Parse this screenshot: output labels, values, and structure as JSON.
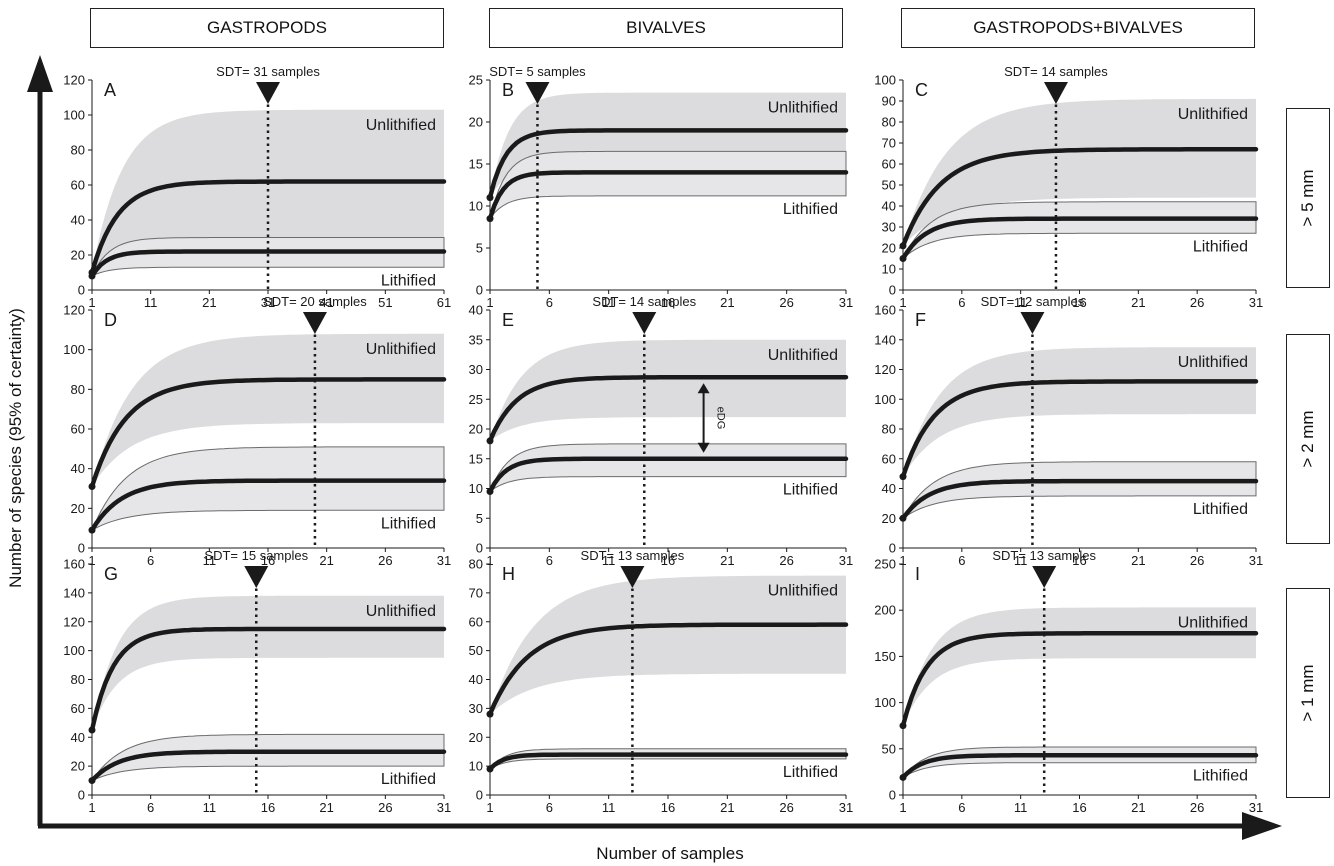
{
  "column_headers": [
    "GASTROPODS",
    "BIVALVES",
    "GASTROPODS+BIVALVES"
  ],
  "row_labels": [
    "> 5 mm",
    "> 2 mm",
    "> 1 mm"
  ],
  "y_axis_label": "Number of species (95% of certainty)",
  "x_axis_label": "Number of samples",
  "colors": {
    "curve": "#1a1a1a",
    "unlithified_band": "#dcdcde",
    "lithified_band": "#e6e6e8",
    "band_edge": "#6b6b6b"
  },
  "chart_data": [
    {
      "panel": "A",
      "type": "line",
      "xticks": [
        1,
        11,
        21,
        31,
        41,
        51,
        61
      ],
      "yticks": [
        0,
        20,
        40,
        60,
        80,
        100,
        120
      ],
      "xlim": [
        1,
        61
      ],
      "ylim": [
        0,
        120
      ],
      "sdt": 31,
      "sdt_label": "SDT= 31 samples",
      "series": [
        {
          "name": "Unlithified",
          "start": 10,
          "plateau": 62,
          "rate": 0.23,
          "band_low": 30,
          "band_high": 103
        },
        {
          "name": "Lithified",
          "start": 8,
          "plateau": 22,
          "rate": 0.4,
          "band_low": 13,
          "band_high": 30
        }
      ]
    },
    {
      "panel": "B",
      "type": "line",
      "xticks": [
        1,
        6,
        11,
        16,
        21,
        26,
        31
      ],
      "yticks": [
        0,
        5,
        10,
        15,
        20,
        25
      ],
      "xlim": [
        1,
        31
      ],
      "ylim": [
        0,
        25
      ],
      "sdt": 5,
      "sdt_label": "SDT= 5 samples",
      "series": [
        {
          "name": "Unlithified",
          "start": 11,
          "plateau": 19,
          "rate": 0.75,
          "band_low": 15,
          "band_high": 23.5
        },
        {
          "name": "Lithified",
          "start": 8.5,
          "plateau": 14,
          "rate": 0.9,
          "band_low": 11.2,
          "band_high": 16.5
        }
      ]
    },
    {
      "panel": "C",
      "type": "line",
      "xticks": [
        1,
        6,
        11,
        16,
        21,
        26,
        31
      ],
      "yticks": [
        0,
        10,
        20,
        30,
        40,
        50,
        60,
        70,
        80,
        90,
        100
      ],
      "xlim": [
        1,
        31
      ],
      "ylim": [
        0,
        100
      ],
      "sdt": 14,
      "sdt_label": "SDT= 14 samples",
      "series": [
        {
          "name": "Unlithified",
          "start": 21,
          "plateau": 67,
          "rate": 0.32,
          "band_low": 44,
          "band_high": 91
        },
        {
          "name": "Lithified",
          "start": 15,
          "plateau": 34,
          "rate": 0.5,
          "band_low": 27,
          "band_high": 42
        }
      ]
    },
    {
      "panel": "D",
      "type": "line",
      "xticks": [
        1,
        6,
        11,
        16,
        21,
        26,
        31
      ],
      "yticks": [
        0,
        20,
        40,
        60,
        80,
        100,
        120
      ],
      "xlim": [
        1,
        31
      ],
      "ylim": [
        0,
        120
      ],
      "sdt": 20,
      "sdt_label": "SDT= 20 samples",
      "series": [
        {
          "name": "Unlithified",
          "start": 31,
          "plateau": 85,
          "rate": 0.35,
          "band_low": 63,
          "band_high": 108
        },
        {
          "name": "Lithified",
          "start": 9,
          "plateau": 34,
          "rate": 0.4,
          "band_low": 19,
          "band_high": 51
        }
      ]
    },
    {
      "panel": "E",
      "type": "line",
      "xticks": [
        1,
        6,
        11,
        16,
        21,
        26,
        31
      ],
      "yticks": [
        0,
        5,
        10,
        15,
        20,
        25,
        30,
        35,
        40
      ],
      "xlim": [
        1,
        31
      ],
      "ylim": [
        0,
        40
      ],
      "sdt": 14,
      "sdt_label": "SDT= 14 samples",
      "annotation": "eDG",
      "annotation_x": 19,
      "series": [
        {
          "name": "Unlithified",
          "start": 18,
          "plateau": 28.7,
          "rate": 0.45,
          "band_low": 22,
          "band_high": 35
        },
        {
          "name": "Lithified",
          "start": 9.5,
          "plateau": 15,
          "rate": 0.75,
          "band_low": 12,
          "band_high": 17.5
        }
      ]
    },
    {
      "panel": "F",
      "type": "line",
      "xticks": [
        1,
        6,
        11,
        16,
        21,
        26,
        31
      ],
      "yticks": [
        0,
        20,
        40,
        60,
        80,
        100,
        120,
        140,
        160
      ],
      "xlim": [
        1,
        31
      ],
      "ylim": [
        0,
        160
      ],
      "sdt": 12,
      "sdt_label": "SDT= 12 samples",
      "series": [
        {
          "name": "Unlithified",
          "start": 48,
          "plateau": 112,
          "rate": 0.38,
          "band_low": 90,
          "band_high": 135
        },
        {
          "name": "Lithified",
          "start": 20,
          "plateau": 45,
          "rate": 0.45,
          "band_low": 35,
          "band_high": 58
        }
      ]
    },
    {
      "panel": "G",
      "type": "line",
      "xticks": [
        1,
        6,
        11,
        16,
        21,
        26,
        31
      ],
      "yticks": [
        0,
        20,
        40,
        60,
        80,
        100,
        120,
        140,
        160
      ],
      "xlim": [
        1,
        31
      ],
      "ylim": [
        0,
        160
      ],
      "sdt": 15,
      "sdt_label": "SDT= 15 samples",
      "series": [
        {
          "name": "Unlithified",
          "start": 45,
          "plateau": 115,
          "rate": 0.55,
          "band_low": 95,
          "band_high": 138
        },
        {
          "name": "Lithified",
          "start": 10,
          "plateau": 30,
          "rate": 0.45,
          "band_low": 20,
          "band_high": 42
        }
      ]
    },
    {
      "panel": "H",
      "type": "line",
      "xticks": [
        1,
        6,
        11,
        16,
        21,
        26,
        31
      ],
      "yticks": [
        0,
        10,
        20,
        30,
        40,
        50,
        60,
        70,
        80
      ],
      "xlim": [
        1,
        31
      ],
      "ylim": [
        0,
        80
      ],
      "sdt": 13,
      "sdt_label": "SDT= 13 samples",
      "series": [
        {
          "name": "Unlithified",
          "start": 28,
          "plateau": 59,
          "rate": 0.32,
          "band_low": 42,
          "band_high": 76
        },
        {
          "name": "Lithified",
          "start": 9,
          "plateau": 14,
          "rate": 0.9,
          "band_low": 12.5,
          "band_high": 16
        }
      ]
    },
    {
      "panel": "I",
      "type": "line",
      "xticks": [
        1,
        6,
        11,
        16,
        21,
        26,
        31
      ],
      "yticks": [
        0,
        50,
        100,
        150,
        200,
        250
      ],
      "xlim": [
        1,
        31
      ],
      "ylim": [
        0,
        250
      ],
      "sdt": 13,
      "sdt_label": "SDT= 13 samples",
      "series": [
        {
          "name": "Unlithified",
          "start": 75,
          "plateau": 175,
          "rate": 0.5,
          "band_low": 148,
          "band_high": 203
        },
        {
          "name": "Lithified",
          "start": 19,
          "plateau": 43,
          "rate": 0.6,
          "band_low": 35,
          "band_high": 52
        }
      ]
    }
  ]
}
